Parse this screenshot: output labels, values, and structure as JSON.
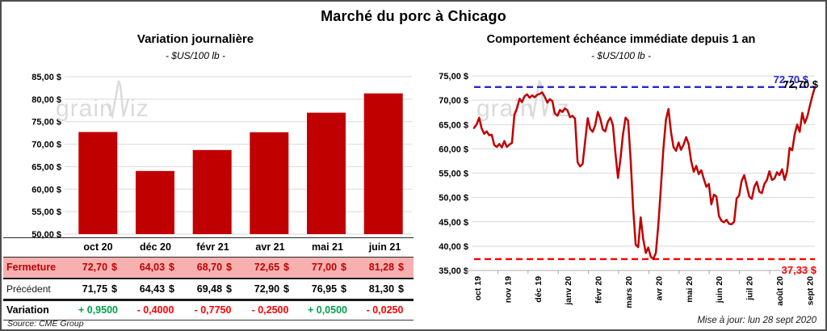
{
  "page": {
    "title": "Marché du porc à Chicago",
    "source_note": "Source: CME Group",
    "update_note": "Mise à jour: lun 28 sept 2020",
    "watermark": {
      "part1": "grain",
      "part2": "iz"
    }
  },
  "colors": {
    "bar_red": "#C00000",
    "pink_row": "#F7B0B0",
    "positive": "#00A14B",
    "negative": "#FF0000",
    "ref_blue": "#2828CC",
    "grid": "#D9D9D9",
    "axis_gray": "#ABABAB",
    "watermark_gray": "#DBDBDB"
  },
  "chart_data": [
    {
      "id": "daily-variation",
      "type": "bar",
      "title": "Variation journalière",
      "subtitle": "- $US/100 lb -",
      "categories": [
        "oct 20",
        "déc 20",
        "févr 21",
        "avr 21",
        "mai 21",
        "juin 21"
      ],
      "values": [
        72.7,
        64.03,
        68.7,
        72.65,
        77.0,
        81.28
      ],
      "ylim": [
        50,
        85
      ],
      "ytick_step": 5,
      "ytick_labels": [
        "50,00 $",
        "55,00 $",
        "60,00 $",
        "65,00 $",
        "70,00 $",
        "75,00 $",
        "80,00 $",
        "85,00 $"
      ],
      "bar_color": "#C00000",
      "grid": true,
      "legend": false
    },
    {
      "id": "front-month-one-year",
      "type": "line",
      "title": "Comportement échéance immédiate depuis 1 an",
      "subtitle": "- $US/100 lb -",
      "x_tick_labels": [
        "oct 19",
        "nov 19",
        "déc 19",
        "janv 20",
        "févr 20",
        "mars 20",
        "avr 20",
        "mai 20",
        "juin 20",
        "juil 20",
        "août 20",
        "sept 20"
      ],
      "values": [
        64.3,
        65.0,
        66.4,
        64.2,
        63.1,
        63.6,
        62.8,
        62.9,
        60.8,
        60.4,
        61.0,
        60.3,
        61.6,
        60.4,
        60.9,
        61.2,
        67.1,
        68.3,
        70.3,
        69.6,
        70.8,
        71.2,
        70.5,
        71.0,
        70.6,
        71.1,
        71.3,
        71.6,
        70.7,
        69.5,
        70.2,
        69.8,
        67.3,
        66.8,
        68.0,
        67.6,
        68.3,
        67.9,
        66.5,
        66.8,
        66.2,
        57.2,
        56.4,
        56.9,
        61.5,
        66.3,
        64.1,
        63.5,
        64.9,
        67.6,
        66.2,
        64.0,
        63.6,
        65.6,
        66.4,
        64.9,
        59.0,
        54.0,
        58.0,
        63.0,
        66.4,
        65.8,
        58.0,
        48.0,
        40.3,
        39.8,
        45.9,
        41.5,
        38.6,
        39.7,
        37.8,
        37.35,
        38.6,
        44.5,
        52.0,
        60.0,
        66.0,
        68.2,
        63.5,
        60.4,
        59.6,
        61.3,
        59.8,
        60.9,
        62.4,
        61.0,
        57.5,
        55.3,
        56.5,
        54.8,
        55.6,
        53.8,
        52.2,
        52.8,
        48.6,
        50.6,
        50.2,
        46.2,
        45.2,
        44.9,
        45.4,
        44.6,
        44.5,
        45.0,
        49.8,
        50.4,
        53.4,
        54.6,
        52.4,
        50.2,
        49.7,
        52.2,
        53.2,
        51.2,
        50.9,
        52.8,
        53.6,
        55.4,
        53.6,
        53.9,
        55.2,
        54.6,
        55.8,
        53.6,
        55.4,
        60.2,
        59.7,
        63.0,
        65.0,
        63.5,
        67.4,
        65.3,
        66.6,
        68.8,
        70.9,
        72.7
      ],
      "ylim": [
        35,
        75
      ],
      "ytick_step": 5,
      "ytick_labels": [
        "35,00 $",
        "40,00 $",
        "45,00 $",
        "50,00 $",
        "55,00 $",
        "60,00 $",
        "65,00 $",
        "70,00 $",
        "75,00 $"
      ],
      "line_color": "#C00000",
      "ref_lines": [
        {
          "value": 72.7,
          "label": "72,70 $",
          "color": "#2828CC",
          "style": "dashed",
          "position": "top-right"
        },
        {
          "value": 37.33,
          "label": "37,33 $",
          "color": "#FF0000",
          "style": "dashed",
          "position": "bottom-right"
        }
      ],
      "end_label": {
        "text": "72,70 $",
        "color": "#000000"
      },
      "grid": true,
      "legend": false
    }
  ],
  "table": {
    "corner": "",
    "columns": [
      "oct 20",
      "déc 20",
      "févr 21",
      "avr 21",
      "mai 21",
      "juin 21"
    ],
    "rows": [
      {
        "kind": "close",
        "label": "Fermeture",
        "unit": "$",
        "values": [
          "72,70",
          "64,03",
          "68,70",
          "72,65",
          "77,00",
          "81,28"
        ]
      },
      {
        "kind": "previous",
        "label": "Précédent",
        "unit": "$",
        "values": [
          "71,75",
          "64,43",
          "69,48",
          "72,90",
          "76,95",
          "81,30"
        ]
      },
      {
        "kind": "variation",
        "label": "Variation",
        "values": [
          "+ 0,9500",
          "- 0,4000",
          "- 0,7750",
          "- 0,2500",
          "+ 0,0500",
          "- 0,0250"
        ]
      }
    ]
  }
}
